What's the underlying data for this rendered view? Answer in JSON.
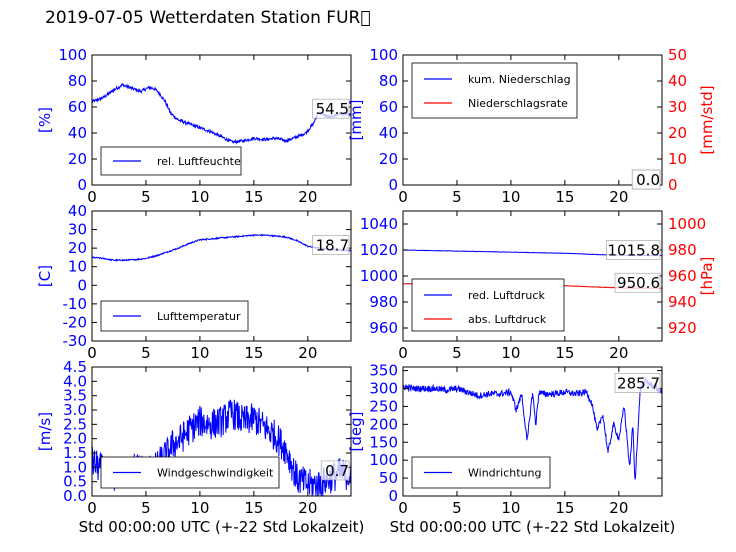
{
  "title": "2019-07-05 Wetterdaten Station FUR\u0000",
  "colors": {
    "primary": "#0000ff",
    "secondary": "#ff0000",
    "axis": "#000000"
  },
  "chart_data": [
    {
      "id": "humidity",
      "type": "line",
      "ylabel": "[%]",
      "ylim": [
        0,
        100
      ],
      "yticks": [
        0,
        20,
        40,
        60,
        80,
        100
      ],
      "xlim": [
        0,
        24
      ],
      "xticks": [
        0,
        5,
        10,
        15,
        20
      ],
      "current_value": "54.5",
      "legend": {
        "position": "lower-left",
        "entries": [
          {
            "label": "rel. Luftfeuchte",
            "color": "#0000ff"
          }
        ]
      },
      "series": [
        {
          "name": "rel. Luftfeuchte",
          "axis": "left",
          "color": "#0000ff",
          "noise": 1.2,
          "x": [
            0,
            1,
            2,
            2.8,
            3.5,
            4.5,
            5.3,
            5.8,
            6.2,
            6.8,
            7.3,
            8,
            9,
            10,
            11,
            12,
            13,
            14,
            15,
            16,
            17,
            18,
            19,
            19.8,
            20.5,
            21,
            22,
            23,
            24
          ],
          "y": [
            64,
            67,
            73,
            77,
            75,
            72,
            75,
            74,
            71,
            64,
            55,
            50,
            47,
            44,
            41,
            37,
            33,
            34,
            36,
            35,
            36,
            34,
            37,
            40,
            47,
            56,
            52,
            55,
            54
          ]
        }
      ]
    },
    {
      "id": "precip",
      "type": "line",
      "ylabel": "[mm]",
      "ylim": [
        0,
        100
      ],
      "yticks": [
        0,
        20,
        40,
        60,
        80,
        100
      ],
      "ylabel2": "[mm/std]",
      "ylim2": [
        0,
        50
      ],
      "yticks2": [
        0,
        10,
        20,
        30,
        40,
        50
      ],
      "xlim": [
        0,
        24
      ],
      "xticks": [
        0,
        5,
        10,
        15,
        20
      ],
      "current_value": "0.0",
      "current_value2": "0.0",
      "legend": {
        "position": "upper-left",
        "entries": [
          {
            "label": "kum. Niederschlag",
            "color": "#0000ff"
          },
          {
            "label": "Niederschlagsrate",
            "color": "#ff0000"
          }
        ]
      },
      "series": [
        {
          "name": "kum. Niederschlag",
          "axis": "left",
          "color": "#0000ff",
          "noise": 0,
          "x": [
            0,
            24
          ],
          "y": [
            0,
            0
          ]
        },
        {
          "name": "Niederschlagsrate",
          "axis": "right",
          "color": "#ff0000",
          "noise": 0,
          "x": [
            0,
            24
          ],
          "y": [
            0,
            0
          ]
        }
      ]
    },
    {
      "id": "temperature",
      "type": "line",
      "ylabel": "[C]",
      "ylim": [
        -30,
        40
      ],
      "yticks": [
        -30,
        -20,
        -10,
        0,
        10,
        20,
        30,
        40
      ],
      "xlim": [
        0,
        24
      ],
      "xticks": [
        0,
        5,
        10,
        15,
        20
      ],
      "current_value": "18.7",
      "legend": {
        "position": "lower-left",
        "entries": [
          {
            "label": "Lufttemperatur",
            "color": "#0000ff"
          }
        ]
      },
      "series": [
        {
          "name": "Lufttemperatur",
          "axis": "left",
          "color": "#0000ff",
          "noise": 0.35,
          "x": [
            0,
            1,
            2,
            3,
            4,
            5,
            6,
            7,
            8,
            9,
            10,
            11,
            12,
            13,
            14,
            15,
            16,
            17,
            18,
            19,
            20,
            21,
            22,
            23,
            24
          ],
          "y": [
            15,
            14.5,
            13.5,
            13.5,
            13.8,
            14.5,
            16,
            18,
            20,
            22.5,
            24.5,
            25,
            25.5,
            26,
            26.5,
            27,
            27,
            26.5,
            26,
            24,
            21,
            20,
            19.5,
            19,
            18.7
          ]
        }
      ]
    },
    {
      "id": "pressure",
      "type": "line",
      "ylabel2": "[hPa]",
      "ylim": [
        950,
        1050
      ],
      "yticks": [
        960,
        980,
        1000,
        1020,
        1040
      ],
      "ylim2": [
        910,
        1010
      ],
      "yticks2": [
        920,
        940,
        960,
        980,
        1000
      ],
      "xlim": [
        0,
        24
      ],
      "xticks": [
        0,
        5,
        10,
        15,
        20
      ],
      "current_value": "1015.8",
      "current_value2": "950.6",
      "legend": {
        "position": "lower-left",
        "entries": [
          {
            "label": "red. Luftdruck",
            "color": "#0000ff"
          },
          {
            "label": "abs. Luftdruck",
            "color": "#ff0000"
          }
        ]
      },
      "series": [
        {
          "name": "red. Luftdruck",
          "axis": "left",
          "color": "#0000ff",
          "noise": 0.15,
          "x": [
            0,
            3,
            6,
            9,
            12,
            15,
            18,
            21,
            24
          ],
          "y": [
            1020,
            1019.5,
            1019,
            1018.5,
            1018,
            1017.5,
            1016.5,
            1015.8,
            1015.8
          ]
        },
        {
          "name": "abs. Luftdruck",
          "axis": "right",
          "color": "#ff0000",
          "noise": 0.15,
          "x": [
            0,
            3,
            6,
            9,
            12,
            15,
            18,
            21,
            24
          ],
          "y": [
            954,
            954,
            953.5,
            953.5,
            953,
            952.5,
            951.5,
            950.6,
            950.6
          ]
        }
      ]
    },
    {
      "id": "wind_speed",
      "type": "line",
      "ylabel": "[m/s]",
      "ylim": [
        0,
        4.5
      ],
      "yticks": [
        0.0,
        0.5,
        1.0,
        1.5,
        2.0,
        2.5,
        3.0,
        3.5,
        4.0,
        4.5
      ],
      "xlim": [
        0,
        24
      ],
      "xticks": [
        0,
        5,
        10,
        15,
        20
      ],
      "xlabel": "Std 00:00:00 UTC (+-22 Std Lokalzeit)",
      "current_value": "0.7",
      "legend": {
        "position": "lower-left",
        "entries": [
          {
            "label": "Windgeschwindigkeit",
            "color": "#0000ff"
          }
        ]
      },
      "series": [
        {
          "name": "Windgeschwindigkeit",
          "axis": "left",
          "color": "#0000ff",
          "noise": 0.55,
          "x": [
            0,
            1,
            2,
            3,
            4,
            5,
            6,
            6.5,
            7,
            7.5,
            8,
            9,
            10,
            11,
            12,
            13,
            14,
            15,
            16,
            17,
            18,
            19,
            20,
            21,
            22,
            23,
            24
          ],
          "y": [
            1.2,
            0.9,
            0.7,
            0.8,
            1.0,
            0.9,
            1.0,
            1.3,
            1.5,
            1.8,
            1.9,
            2.3,
            2.6,
            2.5,
            2.6,
            2.9,
            2.6,
            2.7,
            2.4,
            2.1,
            1.6,
            0.6,
            0.4,
            0.4,
            0.6,
            0.8,
            0.7
          ]
        }
      ]
    },
    {
      "id": "wind_direction",
      "type": "line",
      "ylabel": "[deg]",
      "ylim": [
        0,
        360
      ],
      "yticks": [
        0,
        50,
        100,
        150,
        200,
        250,
        300,
        350
      ],
      "xlim": [
        0,
        24
      ],
      "xticks": [
        0,
        5,
        10,
        15,
        20
      ],
      "xlabel": "Std 00:00:00 UTC (+-22 Std Lokalzeit)",
      "current_value": "285.7",
      "legend": {
        "position": "lower-left",
        "entries": [
          {
            "label": "Windrichtung",
            "color": "#0000ff"
          }
        ]
      },
      "series": [
        {
          "name": "Windrichtung",
          "axis": "left",
          "color": "#0000ff",
          "noise": 9,
          "x": [
            0,
            1,
            2,
            3,
            4,
            5,
            6,
            7,
            8,
            9,
            10,
            10.5,
            11,
            11.5,
            12,
            12.3,
            12.6,
            13,
            14,
            15,
            16,
            17,
            17.5,
            18,
            18.5,
            19,
            19.5,
            20,
            20.5,
            21,
            21.3,
            21.5,
            21.7,
            22,
            22.5,
            23,
            24
          ],
          "y": [
            305,
            300,
            300,
            300,
            295,
            300,
            290,
            280,
            285,
            285,
            290,
            240,
            285,
            150,
            290,
            200,
            290,
            285,
            285,
            290,
            285,
            290,
            260,
            180,
            230,
            120,
            200,
            160,
            250,
            80,
            200,
            30,
            150,
            300,
            320,
            310,
            290
          ]
        }
      ]
    }
  ]
}
